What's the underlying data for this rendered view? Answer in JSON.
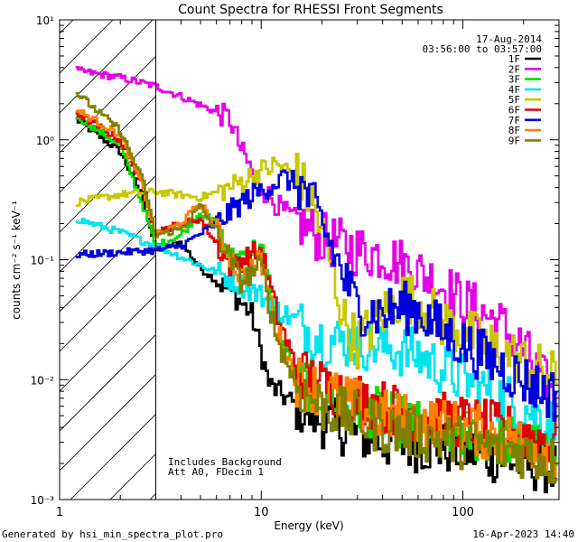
{
  "chart_data": {
    "type": "line",
    "title": "Count Spectra for RHESSI Front Segments",
    "xlabel": "Energy (keV)",
    "ylabel": "counts cm⁻² s⁻¹ keV⁻¹",
    "xscale": "log",
    "yscale": "log",
    "xlim": [
      1,
      300
    ],
    "ylim": [
      0.001,
      10
    ],
    "x_tick_labels": [
      "1",
      "10",
      "100"
    ],
    "y_tick_labels": [
      "10⁻³",
      "10⁻²",
      "10⁻¹",
      "10⁰",
      "10¹"
    ],
    "date": "17-Aug-2014",
    "time_range": "03:56:00 to 03:57:00",
    "annotations": [
      "Includes Background",
      "Att A0, FDecim 1"
    ],
    "excluded_region_below_keV": 3,
    "footer_left": "Generated by hsi_min_spectra_plot.pro",
    "footer_right": "16-Apr-2023 14:40",
    "series": [
      {
        "name": "1F",
        "color": "#000000",
        "points": [
          [
            1.2,
            1.5
          ],
          [
            2,
            0.8
          ],
          [
            2.6,
            0.33
          ],
          [
            3,
            0.12
          ],
          [
            4,
            0.14
          ],
          [
            5,
            0.085
          ],
          [
            7,
            0.055
          ],
          [
            9,
            0.035
          ],
          [
            11,
            0.009
          ],
          [
            15,
            0.006
          ],
          [
            20,
            0.0045
          ],
          [
            30,
            0.0035
          ],
          [
            40,
            0.003
          ],
          [
            60,
            0.0028
          ],
          [
            100,
            0.0026
          ],
          [
            200,
            0.002
          ],
          [
            300,
            0.0018
          ]
        ]
      },
      {
        "name": "2F",
        "color": "#e600e6",
        "points": [
          [
            1.2,
            3.8
          ],
          [
            2,
            3.3
          ],
          [
            3,
            2.8
          ],
          [
            4,
            2.3
          ],
          [
            6,
            1.7
          ],
          [
            7,
            1.5
          ],
          [
            8,
            0.8
          ],
          [
            10,
            0.4
          ],
          [
            13,
            0.25
          ],
          [
            20,
            0.15
          ],
          [
            30,
            0.12
          ],
          [
            40,
            0.11
          ],
          [
            60,
            0.08
          ],
          [
            80,
            0.06
          ],
          [
            100,
            0.045
          ],
          [
            150,
            0.03
          ],
          [
            200,
            0.018
          ],
          [
            300,
            0.006
          ]
        ]
      },
      {
        "name": "3F",
        "color": "#00e000",
        "points": [
          [
            1.2,
            1.6
          ],
          [
            2,
            0.9
          ],
          [
            2.6,
            0.28
          ],
          [
            3,
            0.13
          ],
          [
            4,
            0.16
          ],
          [
            5,
            0.25
          ],
          [
            6,
            0.2
          ],
          [
            7,
            0.1
          ],
          [
            10,
            0.13
          ],
          [
            12,
            0.03
          ],
          [
            15,
            0.01
          ],
          [
            20,
            0.008
          ],
          [
            40,
            0.005
          ],
          [
            60,
            0.004
          ],
          [
            100,
            0.0035
          ],
          [
            200,
            0.003
          ],
          [
            300,
            0.0025
          ]
        ]
      },
      {
        "name": "4F",
        "color": "#00e5ee",
        "points": [
          [
            1.2,
            0.22
          ],
          [
            2,
            0.17
          ],
          [
            3,
            0.13
          ],
          [
            5,
            0.09
          ],
          [
            7,
            0.07
          ],
          [
            10,
            0.05
          ],
          [
            15,
            0.03
          ],
          [
            20,
            0.022
          ],
          [
            30,
            0.02
          ],
          [
            40,
            0.019
          ],
          [
            60,
            0.016
          ],
          [
            100,
            0.01
          ],
          [
            200,
            0.006
          ],
          [
            300,
            0.004
          ]
        ]
      },
      {
        "name": "5F",
        "color": "#c8c800",
        "points": [
          [
            1.2,
            0.3
          ],
          [
            2,
            0.35
          ],
          [
            3,
            0.37
          ],
          [
            5,
            0.33
          ],
          [
            7,
            0.4
          ],
          [
            10,
            0.55
          ],
          [
            12,
            0.62
          ],
          [
            15,
            0.5
          ],
          [
            18,
            0.3
          ],
          [
            22,
            0.1
          ],
          [
            26,
            0.03
          ],
          [
            30,
            0.02
          ],
          [
            40,
            0.035
          ],
          [
            50,
            0.05
          ],
          [
            60,
            0.045
          ],
          [
            80,
            0.03
          ],
          [
            100,
            0.025
          ],
          [
            200,
            0.014
          ],
          [
            300,
            0.01
          ]
        ]
      },
      {
        "name": "6F",
        "color": "#e00000",
        "points": [
          [
            1.2,
            1.7
          ],
          [
            2,
            1.0
          ],
          [
            2.6,
            0.42
          ],
          [
            3,
            0.17
          ],
          [
            4,
            0.2
          ],
          [
            5,
            0.22
          ],
          [
            7,
            0.09
          ],
          [
            10,
            0.12
          ],
          [
            12,
            0.035
          ],
          [
            15,
            0.012
          ],
          [
            20,
            0.009
          ],
          [
            40,
            0.006
          ],
          [
            60,
            0.005
          ],
          [
            100,
            0.0045
          ],
          [
            200,
            0.0035
          ],
          [
            300,
            0.003
          ]
        ]
      },
      {
        "name": "7F",
        "color": "#0000dd",
        "points": [
          [
            1.2,
            0.11
          ],
          [
            2,
            0.115
          ],
          [
            3,
            0.12
          ],
          [
            4,
            0.13
          ],
          [
            6,
            0.2
          ],
          [
            8,
            0.3
          ],
          [
            10,
            0.38
          ],
          [
            13,
            0.48
          ],
          [
            16,
            0.4
          ],
          [
            20,
            0.2
          ],
          [
            25,
            0.08
          ],
          [
            30,
            0.04
          ],
          [
            40,
            0.035
          ],
          [
            50,
            0.04
          ],
          [
            60,
            0.038
          ],
          [
            80,
            0.025
          ],
          [
            100,
            0.02
          ],
          [
            200,
            0.01
          ],
          [
            300,
            0.007
          ]
        ]
      },
      {
        "name": "8F",
        "color": "#ff7f00",
        "points": [
          [
            1.2,
            1.8
          ],
          [
            2,
            1.1
          ],
          [
            2.6,
            0.4
          ],
          [
            3,
            0.16
          ],
          [
            4,
            0.2
          ],
          [
            5,
            0.3
          ],
          [
            6,
            0.18
          ],
          [
            8,
            0.07
          ],
          [
            10,
            0.1
          ],
          [
            12,
            0.025
          ],
          [
            15,
            0.01
          ],
          [
            20,
            0.008
          ],
          [
            40,
            0.005
          ],
          [
            60,
            0.0045
          ],
          [
            100,
            0.004
          ],
          [
            200,
            0.003
          ],
          [
            300,
            0.0025
          ]
        ]
      },
      {
        "name": "9F",
        "color": "#808000",
        "points": [
          [
            1.2,
            2.5
          ],
          [
            2,
            1.2
          ],
          [
            2.6,
            0.45
          ],
          [
            3,
            0.16
          ],
          [
            4,
            0.18
          ],
          [
            5,
            0.28
          ],
          [
            6,
            0.17
          ],
          [
            8,
            0.065
          ],
          [
            10,
            0.09
          ],
          [
            12,
            0.022
          ],
          [
            15,
            0.009
          ],
          [
            20,
            0.006
          ],
          [
            40,
            0.004
          ],
          [
            60,
            0.0035
          ],
          [
            100,
            0.003
          ],
          [
            200,
            0.0025
          ],
          [
            300,
            0.002
          ]
        ]
      }
    ]
  }
}
